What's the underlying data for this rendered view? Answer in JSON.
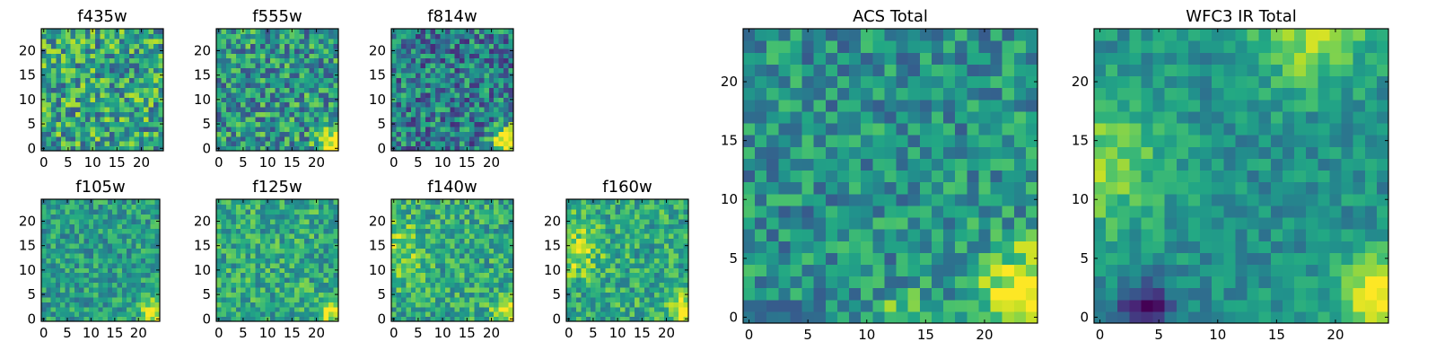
{
  "chart_data": [
    {
      "type": "heatmap",
      "title": "f435w",
      "grid": false,
      "colormap": "viridis",
      "x_ticks": [
        0,
        5,
        10,
        15,
        20
      ],
      "y_ticks": [
        0,
        5,
        10,
        15,
        20
      ],
      "xlim": [
        -0.5,
        24.5
      ],
      "ylim": [
        -0.5,
        24.5
      ],
      "size": [
        25,
        25
      ],
      "seed": 11,
      "background": 0.58,
      "noise": 0.32,
      "features": []
    },
    {
      "type": "heatmap",
      "title": "f555w",
      "grid": false,
      "colormap": "viridis",
      "x_ticks": [
        0,
        5,
        10,
        15,
        20
      ],
      "y_ticks": [
        0,
        5,
        10,
        15,
        20
      ],
      "xlim": [
        -0.5,
        24.5
      ],
      "ylim": [
        -0.5,
        24.5
      ],
      "size": [
        25,
        25
      ],
      "seed": 23,
      "background": 0.52,
      "noise": 0.3,
      "features": [
        {
          "x": 23.5,
          "y": 1.5,
          "sigma": 2.2,
          "amp": 0.55
        }
      ]
    },
    {
      "type": "heatmap",
      "title": "f814w",
      "grid": false,
      "colormap": "viridis",
      "x_ticks": [
        0,
        5,
        10,
        15,
        20
      ],
      "y_ticks": [
        0,
        5,
        10,
        15,
        20
      ],
      "xlim": [
        -0.5,
        24.5
      ],
      "ylim": [
        -0.5,
        24.5
      ],
      "size": [
        25,
        25
      ],
      "seed": 37,
      "background": 0.42,
      "noise": 0.3,
      "features": [
        {
          "x": 23.5,
          "y": 1.5,
          "sigma": 2.3,
          "amp": 0.65
        }
      ]
    },
    {
      "type": "heatmap",
      "title": "f105w",
      "grid": false,
      "colormap": "viridis",
      "x_ticks": [
        0,
        5,
        10,
        15,
        20
      ],
      "y_ticks": [
        0,
        5,
        10,
        15,
        20
      ],
      "xlim": [
        -0.5,
        24.5
      ],
      "ylim": [
        -0.5,
        24.5
      ],
      "size": [
        25,
        25
      ],
      "seed": 41,
      "background": 0.55,
      "noise": 0.2,
      "features": [
        {
          "x": 23.5,
          "y": 1.5,
          "sigma": 2.0,
          "amp": 0.45
        }
      ]
    },
    {
      "type": "heatmap",
      "title": "f125w",
      "grid": false,
      "colormap": "viridis",
      "x_ticks": [
        0,
        5,
        10,
        15,
        20
      ],
      "y_ticks": [
        0,
        5,
        10,
        15,
        20
      ],
      "xlim": [
        -0.5,
        24.5
      ],
      "ylim": [
        -0.5,
        24.5
      ],
      "size": [
        25,
        25
      ],
      "seed": 53,
      "background": 0.6,
      "noise": 0.22,
      "features": [
        {
          "x": 23.5,
          "y": 1.5,
          "sigma": 2.0,
          "amp": 0.45
        }
      ]
    },
    {
      "type": "heatmap",
      "title": "f140w",
      "grid": false,
      "colormap": "viridis",
      "x_ticks": [
        0,
        5,
        10,
        15,
        20
      ],
      "y_ticks": [
        0,
        5,
        10,
        15,
        20
      ],
      "xlim": [
        -0.5,
        24.5
      ],
      "ylim": [
        -0.5,
        24.5
      ],
      "size": [
        25,
        25
      ],
      "seed": 67,
      "background": 0.6,
      "noise": 0.22,
      "features": [
        {
          "x": 0.5,
          "y": 14,
          "sigma": 4,
          "amp": 0.25
        },
        {
          "x": 23.5,
          "y": 1.5,
          "sigma": 2.2,
          "amp": 0.4
        }
      ]
    },
    {
      "type": "heatmap",
      "title": "f160w",
      "grid": false,
      "colormap": "viridis",
      "x_ticks": [
        0,
        5,
        10,
        15,
        20
      ],
      "y_ticks": [
        0,
        5,
        10,
        15,
        20
      ],
      "xlim": [
        -0.5,
        24.5
      ],
      "ylim": [
        -0.5,
        24.5
      ],
      "size": [
        25,
        25
      ],
      "seed": 79,
      "background": 0.6,
      "noise": 0.22,
      "features": [
        {
          "x": 0.5,
          "y": 14,
          "sigma": 4,
          "amp": 0.3
        },
        {
          "x": 23.5,
          "y": 1.5,
          "sigma": 2.2,
          "amp": 0.45
        }
      ]
    },
    {
      "type": "heatmap",
      "title": "ACS Total",
      "grid": false,
      "colormap": "viridis",
      "x_ticks": [
        0,
        5,
        10,
        15,
        20
      ],
      "y_ticks": [
        0,
        5,
        10,
        15,
        20
      ],
      "xlim": [
        -0.5,
        24.5
      ],
      "ylim": [
        -0.5,
        24.5
      ],
      "size": [
        25,
        25
      ],
      "seed": 97,
      "background": 0.5,
      "noise": 0.22,
      "features": [
        {
          "x": 23.5,
          "y": 2,
          "sigma": 2.8,
          "amp": 0.6
        },
        {
          "x": 13,
          "y": 0,
          "sigma": 1.5,
          "amp": 0.3
        }
      ]
    },
    {
      "type": "heatmap",
      "title": "WFC3 IR Total",
      "grid": false,
      "colormap": "viridis",
      "x_ticks": [
        0,
        5,
        10,
        15,
        20
      ],
      "y_ticks": [
        0,
        5,
        10,
        15,
        20
      ],
      "xlim": [
        -0.5,
        24.5
      ],
      "ylim": [
        -0.5,
        24.5
      ],
      "size": [
        25,
        25
      ],
      "seed": 131,
      "background": 0.5,
      "noise": 0.14,
      "features": [
        {
          "x": 0,
          "y": 13,
          "sigma": 4,
          "amp": 0.3
        },
        {
          "x": 18,
          "y": 24,
          "sigma": 3.5,
          "amp": 0.35
        },
        {
          "x": 23.5,
          "y": 2,
          "sigma": 2.5,
          "amp": 0.55
        },
        {
          "x": 4,
          "y": 1,
          "sigma": 1.6,
          "amp": -0.5
        }
      ]
    }
  ]
}
